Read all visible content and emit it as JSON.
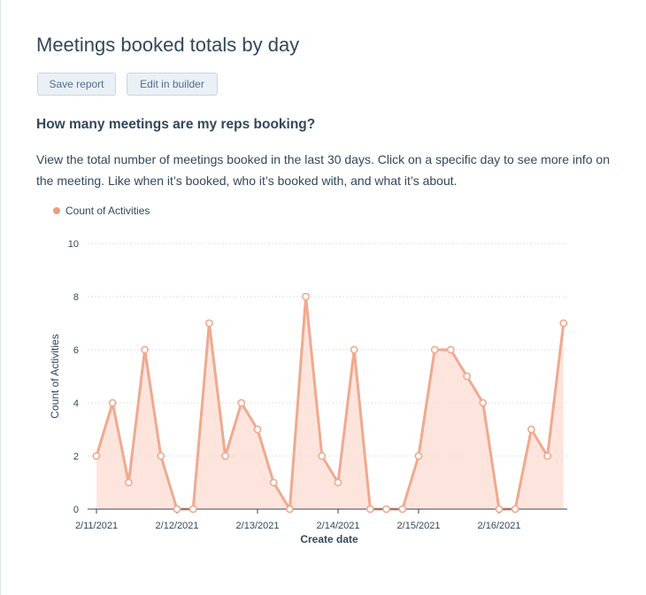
{
  "report": {
    "title": "Meetings booked totals by day",
    "save_label": "Save report",
    "edit_label": "Edit in builder",
    "question": "How many meetings are my reps booking?",
    "description": "View the total number of meetings booked in the last 30 days. Click on a specific day to see more info on the meeting. Like when it’s booked, who it’s booked with, and what it’s about."
  },
  "chart_data": {
    "type": "area",
    "xlabel": "Create date",
    "ylabel": "Count of Activities",
    "ylim": [
      0,
      10
    ],
    "yticks": [
      0,
      2,
      4,
      6,
      8,
      10
    ],
    "legend": "top-left",
    "grid": true,
    "colors": {
      "line": "#f0a98f",
      "fill": "#fcdcd2",
      "point_fill": "#ffffff",
      "legend_dot": "#ea9c85"
    },
    "xtick_labels": [
      "2/11/2021",
      "2/12/2021",
      "2/13/2021",
      "2/14/2021",
      "2/15/2021",
      "2/16/2021"
    ],
    "series": [
      {
        "name": "Count of Activities",
        "values": [
          2,
          4,
          1,
          6,
          2,
          0,
          0,
          7,
          2,
          4,
          3,
          1,
          0,
          8,
          2,
          1,
          6,
          0,
          0,
          0,
          2,
          6,
          6,
          5,
          4,
          0,
          0,
          3,
          2,
          7
        ]
      }
    ]
  }
}
